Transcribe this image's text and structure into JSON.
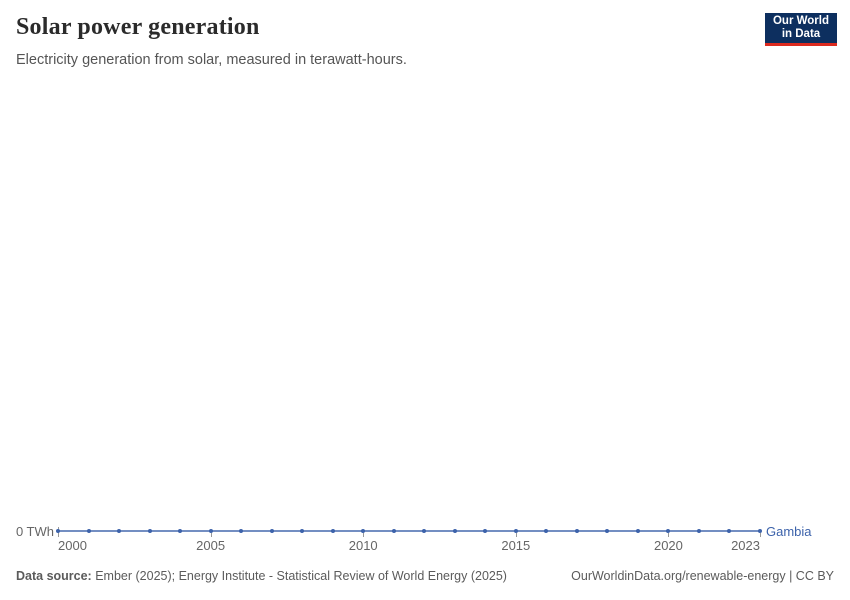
{
  "header": {
    "title": "Solar power generation",
    "subtitle": "Electricity generation from solar, measured in terawatt-hours.",
    "logo": {
      "line1": "Our World",
      "line2": "in Data",
      "bg_color": "#0d2f5f",
      "accent_color": "#dc2a1f"
    }
  },
  "chart": {
    "y_axis_label": "0 TWh",
    "entity_label": "Gambia"
  },
  "chart_data": {
    "type": "line",
    "title": "Solar power generation",
    "subtitle": "Electricity generation from solar, measured in terawatt-hours.",
    "xlabel": "",
    "ylabel": "terawatt-hours",
    "x_ticks": [
      2000,
      2005,
      2010,
      2015,
      2020,
      2023
    ],
    "y_ticks": [
      0
    ],
    "y_unit": "TWh",
    "ylim": [
      0,
      0
    ],
    "grid": false,
    "legend_position": "end-of-line",
    "series": [
      {
        "name": "Gambia",
        "color": "#3d63ab",
        "x": [
          2000,
          2001,
          2002,
          2003,
          2004,
          2005,
          2006,
          2007,
          2008,
          2009,
          2010,
          2011,
          2012,
          2013,
          2014,
          2015,
          2016,
          2017,
          2018,
          2019,
          2020,
          2021,
          2022,
          2023
        ],
        "values": [
          0,
          0,
          0,
          0,
          0,
          0,
          0,
          0,
          0,
          0,
          0,
          0,
          0,
          0,
          0,
          0,
          0,
          0,
          0,
          0,
          0,
          0,
          0,
          0
        ]
      }
    ]
  },
  "footer": {
    "source_label": "Data source:",
    "source_text": " Ember (2025); Energy Institute - Statistical Review of World Energy (2025)",
    "link_text": "OurWorldinData.org/renewable-energy | CC BY"
  }
}
